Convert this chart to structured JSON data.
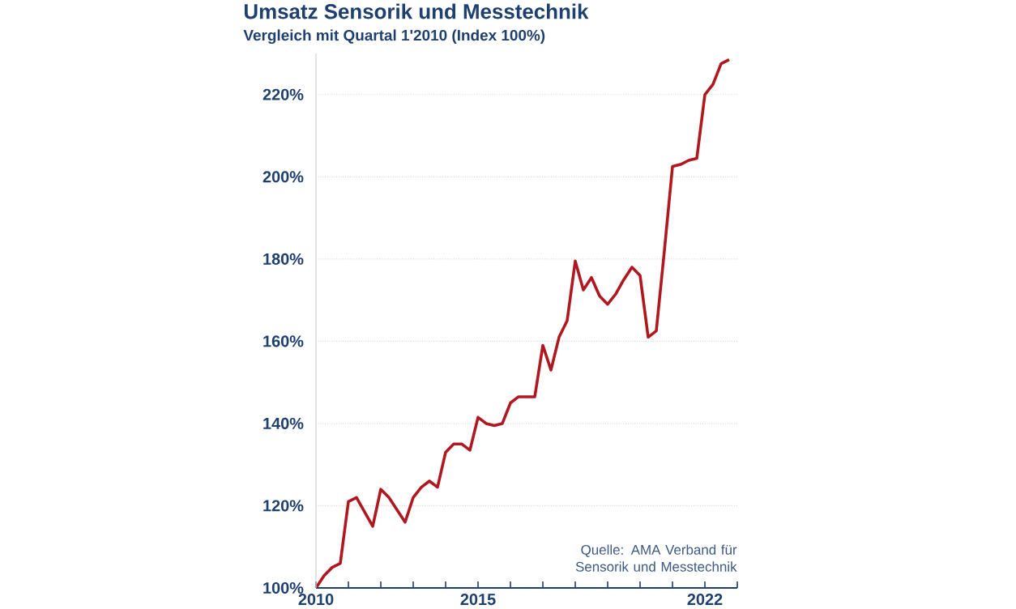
{
  "chart_data": {
    "type": "line",
    "title": "Umsatz Sensorik und Messtechnik",
    "subtitle": "Vergleich mit Quartal 1'2010 (Index 100%)",
    "annotations": [
      "Quelle: AMA Verband für Sensorik und Messtechnik"
    ],
    "x": [
      2010.0,
      2010.25,
      2010.5,
      2010.75,
      2011.0,
      2011.25,
      2011.5,
      2011.75,
      2012.0,
      2012.25,
      2012.5,
      2012.75,
      2013.0,
      2013.25,
      2013.5,
      2013.75,
      2014.0,
      2014.25,
      2014.5,
      2014.75,
      2015.0,
      2015.25,
      2015.5,
      2015.75,
      2016.0,
      2016.25,
      2016.5,
      2016.75,
      2017.0,
      2017.25,
      2017.5,
      2017.75,
      2018.0,
      2018.25,
      2018.5,
      2018.75,
      2019.0,
      2019.25,
      2019.5,
      2019.75,
      2020.0,
      2020.25,
      2020.5,
      2020.75,
      2021.0,
      2021.25,
      2021.5,
      2021.75,
      2022.0,
      2022.25,
      2022.5,
      2022.75
    ],
    "series": [
      {
        "color": "#b01820",
        "values": [
          100,
          103,
          105,
          106,
          121,
          122,
          118.5,
          115,
          124,
          122,
          119,
          116,
          122,
          124.5,
          126,
          124.5,
          133,
          135,
          135,
          133.5,
          141.5,
          140,
          139.5,
          140,
          145,
          146.5,
          146.5,
          146.5,
          159,
          153,
          161,
          165,
          179.5,
          172.5,
          175.5,
          171,
          169,
          171.5,
          175,
          178,
          176,
          161,
          162.5,
          182,
          202.5,
          203,
          204,
          204.5,
          220,
          222.5,
          227.5,
          228.5
        ]
      }
    ],
    "xlim": [
      2010,
      2023
    ],
    "xticks": [
      2010,
      {
        "value": 2011,
        "label": null
      },
      {
        "value": 2012,
        "label": null
      },
      {
        "value": 2013,
        "label": null
      },
      {
        "value": 2014,
        "label": null
      },
      2015,
      {
        "value": 2016,
        "label": null
      },
      {
        "value": 2017,
        "label": null
      },
      {
        "value": 2018,
        "label": null
      },
      {
        "value": 2019,
        "label": null
      },
      {
        "value": 2020,
        "label": null
      },
      {
        "value": 2021,
        "label": null
      },
      2022,
      {
        "value": 2023,
        "label": null
      }
    ],
    "yticks": [
      {
        "value": 100,
        "label": "100%"
      },
      {
        "value": 120,
        "label": "120%"
      },
      {
        "value": 140,
        "label": "140%"
      },
      {
        "value": 160,
        "label": "160%"
      },
      {
        "value": 180,
        "label": "180%"
      },
      {
        "value": 200,
        "label": "200%"
      },
      {
        "value": 220,
        "label": "220%"
      }
    ],
    "ylim": [
      100,
      230
    ],
    "grid": "y",
    "marker": "none",
    "line_style": "solid"
  }
}
